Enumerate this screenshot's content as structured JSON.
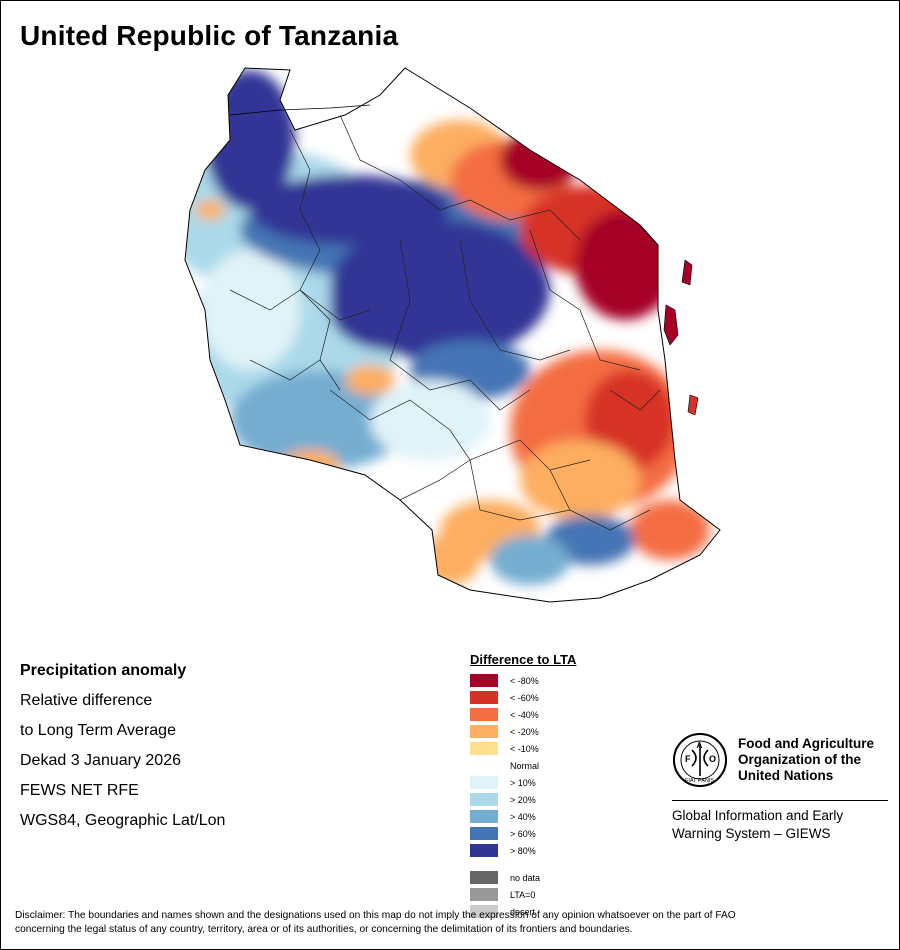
{
  "title": "United Republic of Tanzania",
  "info": {
    "heading": "Precipitation anomaly",
    "line1": "Relative difference",
    "line2": "to Long Term Average",
    "line3": "Dekad 3 January 2026",
    "line4": "FEWS NET RFE",
    "line5": "WGS84, Geographic Lat/Lon"
  },
  "legend": {
    "title": "Difference to LTA",
    "items": [
      {
        "label": "< -80%",
        "color": "#a50026"
      },
      {
        "label": "< -60%",
        "color": "#d73027"
      },
      {
        "label": "< -40%",
        "color": "#f46d43"
      },
      {
        "label": "< -20%",
        "color": "#fdae61"
      },
      {
        "label": "< -10%",
        "color": "#fee090"
      },
      {
        "label": "Normal",
        "color": "#ffffff"
      },
      {
        "label": "> 10%",
        "color": "#e0f3f8"
      },
      {
        "label": "> 20%",
        "color": "#abd9e9"
      },
      {
        "label": "> 40%",
        "color": "#74add1"
      },
      {
        "label": "> 60%",
        "color": "#4575b4"
      },
      {
        "label": "> 80%",
        "color": "#313695"
      }
    ],
    "extra": [
      {
        "label": "no data",
        "color": "#666666"
      },
      {
        "label": "LTA=0",
        "color": "#999999"
      },
      {
        "label": "desert",
        "color": "#cccccc"
      }
    ]
  },
  "fao": {
    "name1": "Food and Agriculture",
    "name2": "Organization of the",
    "name3": "United Nations",
    "emblem_text": "FIAT PANIS",
    "giews1": "Global Information and Early",
    "giews2": "Warning System – GIEWS"
  },
  "disclaimer": {
    "line1": "Disclaimer: The boundaries and names shown and the designations used on this map do not imply the expression of any opinion whatsoever on the part of FAO",
    "line2": "concerning the legal status of any country, territory, area or of its authorities, or concerning the delimitation of its frontiers and boundaries."
  }
}
